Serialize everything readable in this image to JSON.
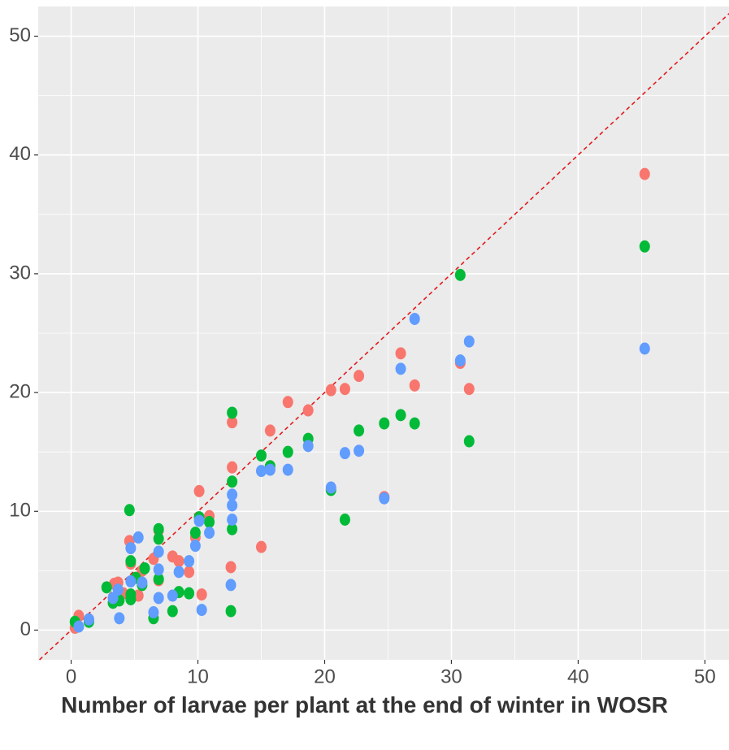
{
  "chart_data": {
    "type": "scatter",
    "x_label": "Number of larvae per plant at the end of winter in WOSR",
    "xlim": [
      -2.6,
      51.9
    ],
    "ylim": [
      -2.5,
      52.5
    ],
    "xticks": [
      0,
      10,
      20,
      30,
      40,
      50
    ],
    "yticks": [
      0,
      10,
      20,
      30,
      40,
      50
    ],
    "grid": true,
    "identity_line": true,
    "identity_line_color": "#e31a1c",
    "series": [
      {
        "color": "#f8766d",
        "x": [
          45.25,
          30.7,
          31.4,
          27.1,
          26.0,
          22.7,
          21.6,
          20.5,
          24.7,
          18.7,
          17.1,
          15.7,
          15.0,
          12.7,
          12.7,
          12.6,
          10.1,
          10.9,
          9.8,
          10.3,
          8.0,
          8.5,
          9.3,
          6.9,
          6.5,
          6.9,
          4.6,
          4.7,
          5.6,
          5.3,
          3.4,
          3.7,
          4.1,
          0.6,
          0.3,
          1.4
        ],
        "values": [
          38.4,
          22.5,
          20.3,
          20.6,
          23.3,
          21.4,
          20.3,
          20.2,
          11.2,
          18.5,
          19.2,
          16.8,
          7.0,
          17.5,
          13.7,
          5.3,
          11.7,
          9.6,
          7.8,
          3.0,
          6.2,
          5.8,
          4.9,
          8.4,
          6.0,
          4.2,
          7.5,
          5.6,
          5.0,
          2.9,
          3.9,
          4.0,
          3.1,
          1.2,
          0.2,
          0.9
        ]
      },
      {
        "color": "#00ba38",
        "x": [
          45.25,
          30.7,
          31.4,
          27.1,
          26.0,
          24.7,
          22.7,
          21.6,
          20.5,
          18.7,
          17.1,
          15.7,
          15.0,
          12.7,
          12.7,
          12.7,
          12.6,
          10.1,
          10.9,
          9.8,
          9.3,
          8.5,
          8.0,
          6.9,
          6.9,
          6.9,
          6.5,
          4.6,
          4.7,
          5.8,
          5.6,
          5.1,
          4.7,
          4.7,
          2.8,
          3.3,
          3.8,
          0.3,
          1.4
        ],
        "values": [
          32.3,
          29.9,
          15.9,
          17.4,
          18.1,
          17.4,
          16.8,
          9.3,
          11.8,
          16.1,
          15.0,
          13.8,
          14.7,
          18.3,
          12.5,
          8.5,
          1.6,
          9.5,
          9.1,
          8.2,
          3.1,
          3.2,
          1.6,
          8.5,
          7.7,
          4.3,
          1.0,
          10.1,
          5.8,
          5.2,
          3.8,
          4.4,
          2.6,
          3.0,
          3.6,
          2.3,
          2.5,
          0.7,
          0.7
        ]
      },
      {
        "color": "#619cff",
        "x": [
          45.25,
          30.7,
          31.4,
          27.1,
          26.0,
          24.7,
          22.7,
          21.6,
          20.5,
          18.7,
          17.1,
          15.7,
          15.0,
          12.7,
          12.7,
          12.7,
          12.6,
          10.1,
          10.9,
          9.8,
          10.3,
          9.3,
          8.5,
          8.0,
          6.9,
          6.9,
          6.9,
          6.5,
          5.3,
          4.7,
          4.7,
          5.6,
          3.7,
          3.3,
          3.8,
          0.6,
          1.4
        ],
        "values": [
          23.7,
          22.7,
          24.3,
          26.2,
          22.0,
          11.1,
          15.1,
          14.9,
          12.0,
          15.5,
          13.5,
          13.5,
          13.4,
          11.4,
          10.5,
          9.3,
          3.8,
          9.2,
          8.2,
          7.1,
          1.7,
          5.8,
          4.9,
          2.9,
          6.6,
          5.1,
          2.7,
          1.5,
          7.8,
          6.9,
          4.1,
          4.0,
          3.4,
          2.7,
          1.0,
          0.3,
          0.9
        ]
      }
    ]
  }
}
